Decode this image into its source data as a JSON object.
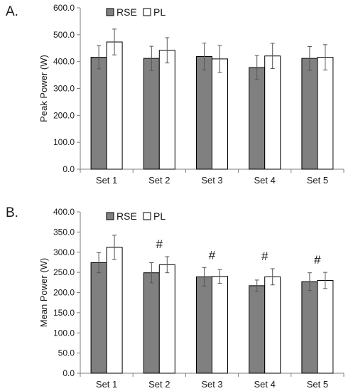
{
  "chart_data": [
    {
      "type": "bar",
      "panel_label": "A.",
      "title": "",
      "xlabel": "",
      "ylabel": "Peak Power (W)",
      "ylim": [
        0,
        600
      ],
      "yticks": [
        0,
        100,
        200,
        300,
        400,
        500,
        600
      ],
      "ytick_labels": [
        "0.0",
        "100.0",
        "200.0",
        "300.0",
        "400.0",
        "500.0",
        "600.0"
      ],
      "categories": [
        "Set 1",
        "Set 2",
        "Set 3",
        "Set 4",
        "Set 5"
      ],
      "legend_position": "top-left",
      "grid": false,
      "series": [
        {
          "name": "RSE",
          "color": "#808080",
          "values": [
            416,
            412,
            419,
            378,
            412
          ],
          "error": [
            43,
            45,
            50,
            45,
            44
          ]
        },
        {
          "name": "PL",
          "color": "#ffffff",
          "values": [
            473,
            442,
            410,
            421,
            416
          ],
          "error": [
            48,
            47,
            50,
            47,
            47
          ]
        }
      ],
      "annotations": []
    },
    {
      "type": "bar",
      "panel_label": "B.",
      "title": "",
      "xlabel": "",
      "ylabel": "Mean Power (W)",
      "ylim": [
        0,
        400
      ],
      "yticks": [
        0,
        50,
        100,
        150,
        200,
        250,
        300,
        350,
        400
      ],
      "ytick_labels": [
        "0.0",
        "50.0",
        "100.0",
        "150.0",
        "200.0",
        "250.0",
        "300.0",
        "350.0",
        "400.0"
      ],
      "categories": [
        "Set 1",
        "Set 2",
        "Set 3",
        "Set 4",
        "Set 5"
      ],
      "legend_position": "top-left",
      "grid": false,
      "series": [
        {
          "name": "RSE",
          "color": "#808080",
          "values": [
            274,
            249,
            239,
            217,
            227
          ],
          "error": [
            25,
            25,
            23,
            14,
            22
          ]
        },
        {
          "name": "PL",
          "color": "#ffffff",
          "values": [
            312,
            269,
            240,
            239,
            230
          ],
          "error": [
            30,
            20,
            17,
            20,
            20
          ]
        }
      ],
      "annotations": [
        {
          "category": "Set 2",
          "text": "#"
        },
        {
          "category": "Set 3",
          "text": "#"
        },
        {
          "category": "Set 4",
          "text": "#"
        },
        {
          "category": "Set 5",
          "text": "#"
        }
      ]
    }
  ]
}
